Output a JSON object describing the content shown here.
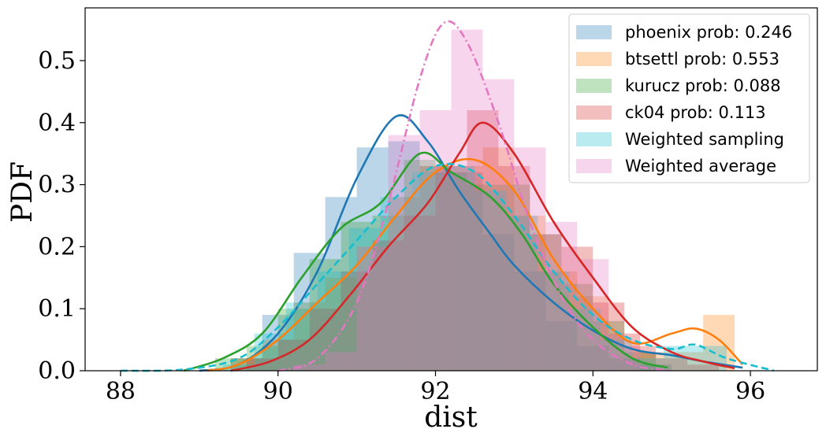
{
  "chart_data": {
    "type": "histogram+kde",
    "xlabel": "dist",
    "ylabel": "PDF",
    "xlim": [
      87.55,
      96.85
    ],
    "ylim": [
      0,
      0.585
    ],
    "xticks": [
      88,
      90,
      92,
      94,
      96
    ],
    "yticks": [
      0.0,
      0.1,
      0.2,
      0.3,
      0.4,
      0.5
    ],
    "xtick_labels": [
      "88",
      "90",
      "92",
      "94",
      "96"
    ],
    "ytick_labels": [
      "0.0",
      "0.1",
      "0.2",
      "0.3",
      "0.4",
      "0.5"
    ],
    "legend_position": "upper right",
    "series": [
      {
        "name": "phoenix prob: 0.246",
        "color": "#1f77b4",
        "line_style": "solid",
        "bins": [
          89.4,
          89.8,
          90.2,
          90.6,
          91.0,
          91.4,
          91.8,
          92.2,
          92.6,
          93.0,
          93.4,
          93.8,
          94.2,
          94.6,
          95.0
        ],
        "heights": [
          0.02,
          0.09,
          0.19,
          0.28,
          0.36,
          0.37,
          0.33,
          0.32,
          0.22,
          0.16,
          0.08,
          0.04,
          0.02,
          0.01
        ],
        "kde": [
          [
            89.0,
            0.0
          ],
          [
            89.5,
            0.01
          ],
          [
            90.0,
            0.06
          ],
          [
            90.5,
            0.16
          ],
          [
            91.0,
            0.31
          ],
          [
            91.5,
            0.41
          ],
          [
            91.9,
            0.37
          ],
          [
            92.3,
            0.29
          ],
          [
            92.7,
            0.22
          ],
          [
            93.0,
            0.17
          ],
          [
            93.5,
            0.11
          ],
          [
            94.0,
            0.065
          ],
          [
            94.5,
            0.035
          ],
          [
            95.0,
            0.025
          ],
          [
            95.4,
            0.015
          ],
          [
            95.9,
            0.005
          ]
        ]
      },
      {
        "name": "btsettl prob: 0.553",
        "color": "#ff7f0e",
        "line_style": "solid",
        "bins": [
          89.4,
          89.8,
          90.2,
          90.6,
          91.0,
          91.4,
          91.8,
          92.2,
          92.6,
          93.0,
          93.4,
          93.8,
          94.2,
          94.6,
          95.0,
          95.4,
          95.8
        ],
        "heights": [
          0.02,
          0.05,
          0.11,
          0.15,
          0.2,
          0.28,
          0.33,
          0.33,
          0.36,
          0.25,
          0.16,
          0.12,
          0.06,
          0.03,
          0.03,
          0.09,
          0.01
        ],
        "kde": [
          [
            89.1,
            0.0
          ],
          [
            89.5,
            0.01
          ],
          [
            90.0,
            0.05
          ],
          [
            90.5,
            0.11
          ],
          [
            91.0,
            0.17
          ],
          [
            91.5,
            0.25
          ],
          [
            92.0,
            0.32
          ],
          [
            92.5,
            0.34
          ],
          [
            93.0,
            0.29
          ],
          [
            93.5,
            0.18
          ],
          [
            94.0,
            0.1
          ],
          [
            94.5,
            0.045
          ],
          [
            95.0,
            0.06
          ],
          [
            95.3,
            0.068
          ],
          [
            95.6,
            0.05
          ],
          [
            95.9,
            0.01
          ]
        ]
      },
      {
        "name": "kurucz prob: 0.088",
        "color": "#2ca02c",
        "line_style": "solid",
        "bins": [
          89.2,
          89.6,
          90.0,
          90.4,
          90.8,
          91.2,
          91.6,
          92.0,
          92.4,
          92.8,
          93.2,
          93.6,
          94.0,
          94.4,
          94.8
        ],
        "heights": [
          0.02,
          0.04,
          0.1,
          0.18,
          0.24,
          0.25,
          0.34,
          0.32,
          0.3,
          0.3,
          0.22,
          0.14,
          0.08,
          0.03,
          0.01
        ],
        "kde": [
          [
            88.8,
            0.0
          ],
          [
            89.3,
            0.02
          ],
          [
            89.8,
            0.06
          ],
          [
            90.3,
            0.15
          ],
          [
            90.8,
            0.23
          ],
          [
            91.3,
            0.27
          ],
          [
            91.8,
            0.35
          ],
          [
            92.2,
            0.32
          ],
          [
            92.7,
            0.28
          ],
          [
            93.1,
            0.22
          ],
          [
            93.5,
            0.14
          ],
          [
            94.0,
            0.07
          ],
          [
            94.5,
            0.02
          ],
          [
            94.95,
            0.005
          ]
        ]
      },
      {
        "name": "ck04 prob: 0.113",
        "color": "#d62728",
        "line_style": "solid",
        "bins": [
          89.6,
          90.0,
          90.4,
          90.8,
          91.2,
          91.6,
          92.0,
          92.4,
          92.8,
          93.2,
          93.6,
          94.0,
          94.4,
          94.8,
          95.2,
          95.6
        ],
        "heights": [
          0.02,
          0.05,
          0.1,
          0.16,
          0.21,
          0.25,
          0.33,
          0.42,
          0.33,
          0.22,
          0.2,
          0.11,
          0.04,
          0.02,
          0.01
        ],
        "kde": [
          [
            89.4,
            0.0
          ],
          [
            89.9,
            0.015
          ],
          [
            90.4,
            0.05
          ],
          [
            90.9,
            0.12
          ],
          [
            91.4,
            0.2
          ],
          [
            91.9,
            0.27
          ],
          [
            92.3,
            0.35
          ],
          [
            92.6,
            0.4
          ],
          [
            93.0,
            0.35
          ],
          [
            93.5,
            0.24
          ],
          [
            94.0,
            0.15
          ],
          [
            94.5,
            0.07
          ],
          [
            95.0,
            0.03
          ],
          [
            95.4,
            0.015
          ],
          [
            95.8,
            0.004
          ]
        ]
      },
      {
        "name": "Weighted sampling",
        "color": "#17becf",
        "line_style": "dashed",
        "bins": [
          89.3,
          89.7,
          90.1,
          90.5,
          90.9,
          91.3,
          91.7,
          92.1,
          92.5,
          92.9,
          93.3,
          93.7,
          94.1,
          94.5,
          94.9,
          95.3,
          95.7
        ],
        "heights": [
          0.01,
          0.06,
          0.11,
          0.16,
          0.23,
          0.28,
          0.32,
          0.33,
          0.29,
          0.25,
          0.16,
          0.1,
          0.05,
          0.02,
          0.04,
          0.04,
          0.01
        ],
        "kde": [
          [
            88.0,
            0.0
          ],
          [
            88.8,
            0.002
          ],
          [
            89.5,
            0.02
          ],
          [
            90.0,
            0.07
          ],
          [
            90.5,
            0.14
          ],
          [
            91.0,
            0.21
          ],
          [
            91.5,
            0.28
          ],
          [
            92.0,
            0.33
          ],
          [
            92.5,
            0.32
          ],
          [
            93.0,
            0.25
          ],
          [
            93.5,
            0.16
          ],
          [
            94.0,
            0.09
          ],
          [
            94.5,
            0.05
          ],
          [
            95.0,
            0.035
          ],
          [
            95.3,
            0.042
          ],
          [
            95.7,
            0.02
          ],
          [
            96.3,
            0.0
          ]
        ]
      },
      {
        "name": "Weighted average",
        "color": "#e377c2",
        "line_style": "dashdot",
        "bins": [
          90.2,
          90.6,
          91.0,
          91.4,
          91.8,
          92.2,
          92.6,
          93.0,
          93.4,
          93.8,
          94.2,
          94.6
        ],
        "heights": [
          0.01,
          0.03,
          0.2,
          0.38,
          0.42,
          0.55,
          0.47,
          0.36,
          0.24,
          0.18,
          0.06,
          0.02
        ],
        "kde": [
          [
            90.0,
            0.0
          ],
          [
            90.5,
            0.02
          ],
          [
            91.0,
            0.11
          ],
          [
            91.4,
            0.27
          ],
          [
            91.8,
            0.47
          ],
          [
            92.1,
            0.56
          ],
          [
            92.4,
            0.53
          ],
          [
            92.8,
            0.4
          ],
          [
            93.2,
            0.24
          ],
          [
            93.6,
            0.12
          ],
          [
            94.0,
            0.05
          ],
          [
            94.5,
            0.01
          ],
          [
            95.0,
            0.0
          ]
        ]
      }
    ]
  }
}
